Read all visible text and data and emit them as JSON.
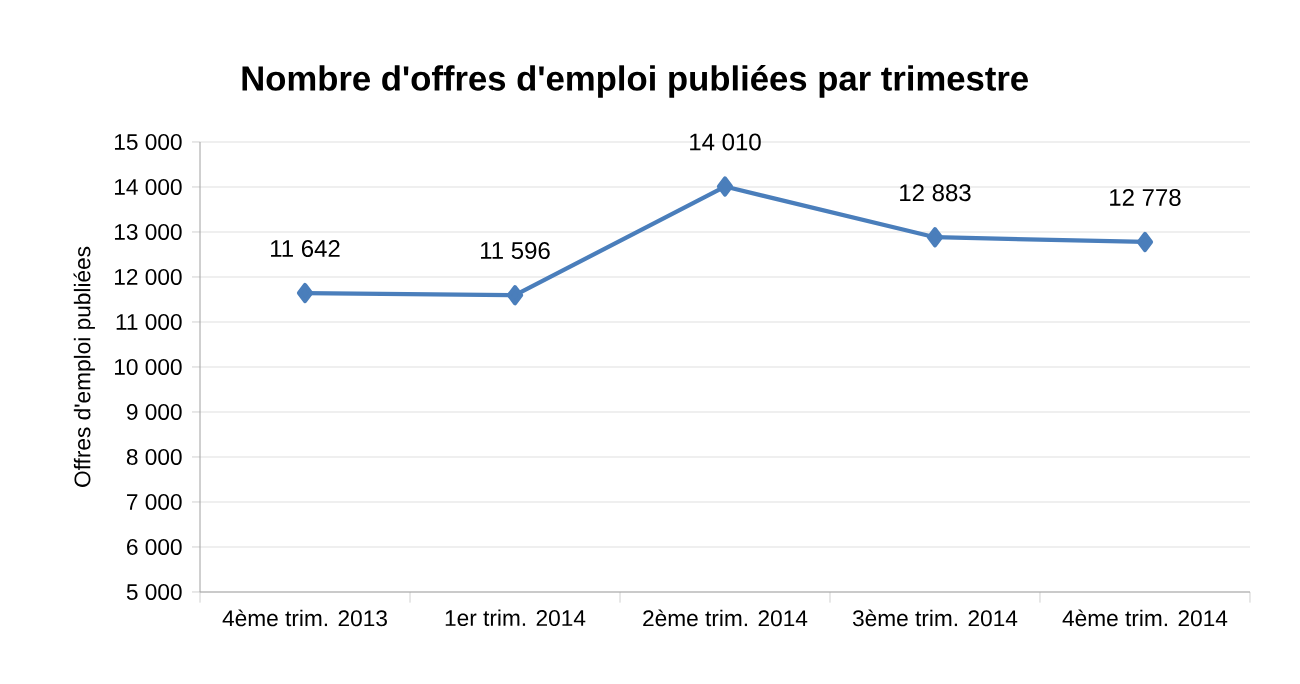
{
  "chart_data": {
    "type": "line",
    "title": "Nombre d'offres d'emploi publiées par trimestre",
    "ylabel": "Offres d'emploi publiées",
    "categories": [
      "4ème trim. 2013",
      "1er trim. 2014",
      "2ème trim. 2014",
      "3ème trim. 2014",
      "4ème trim. 2014"
    ],
    "series": [
      {
        "color": "#4a7ebb",
        "values": [
          11642,
          11596,
          14010,
          12883,
          12778
        ],
        "value_labels": [
          "11 642",
          "11 596",
          "14 010",
          "12 883",
          "12 778"
        ]
      }
    ],
    "ylim": [
      5000,
      15000
    ],
    "yticks": [
      {
        "value": 5000,
        "label": "5 000"
      },
      {
        "value": 6000,
        "label": "6 000"
      },
      {
        "value": 7000,
        "label": "7 000"
      },
      {
        "value": 8000,
        "label": "8 000"
      },
      {
        "value": 9000,
        "label": "9 000"
      },
      {
        "value": 10000,
        "label": "10 000"
      },
      {
        "value": 11000,
        "label": "11 000"
      },
      {
        "value": 12000,
        "label": "12 000"
      },
      {
        "value": 13000,
        "label": "13 000"
      },
      {
        "value": 14000,
        "label": "14 000"
      },
      {
        "value": 15000,
        "label": "15 000"
      }
    ],
    "grid": "y",
    "marker": "diamond",
    "line_style": "solid"
  }
}
